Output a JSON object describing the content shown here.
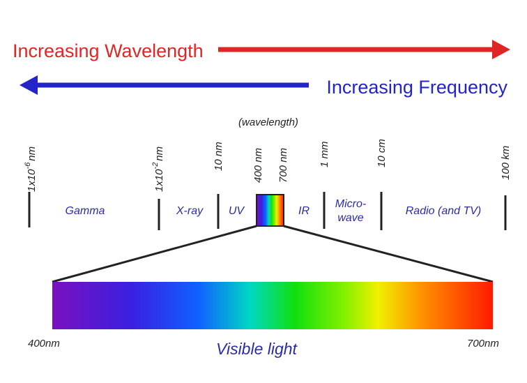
{
  "header": {
    "wavelength_arrow": "Increasing Wavelength",
    "frequency_arrow": "Increasing Frequency"
  },
  "scale_title": "(wavelength)",
  "ticks": [
    {
      "base": "1x10",
      "exp": "-6",
      "unit": "nm"
    },
    {
      "base": "1x10",
      "exp": "-2",
      "unit": "nm"
    },
    {
      "base": "10 nm"
    },
    {
      "base": "400 nm"
    },
    {
      "base": "700 nm"
    },
    {
      "base": "1 mm"
    },
    {
      "base": "10 cm"
    },
    {
      "base": "100 km"
    }
  ],
  "regions": [
    {
      "lines": [
        "Gamma"
      ]
    },
    {
      "lines": [
        "X-ray"
      ]
    },
    {
      "lines": [
        "UV"
      ]
    },
    {
      "lines": [
        "IR"
      ]
    },
    {
      "lines": [
        "Micro-",
        "wave"
      ]
    },
    {
      "lines": [
        "Radio (and TV)"
      ]
    }
  ],
  "visible": {
    "start": "400nm",
    "end": "700nm",
    "label": "Visible light"
  }
}
